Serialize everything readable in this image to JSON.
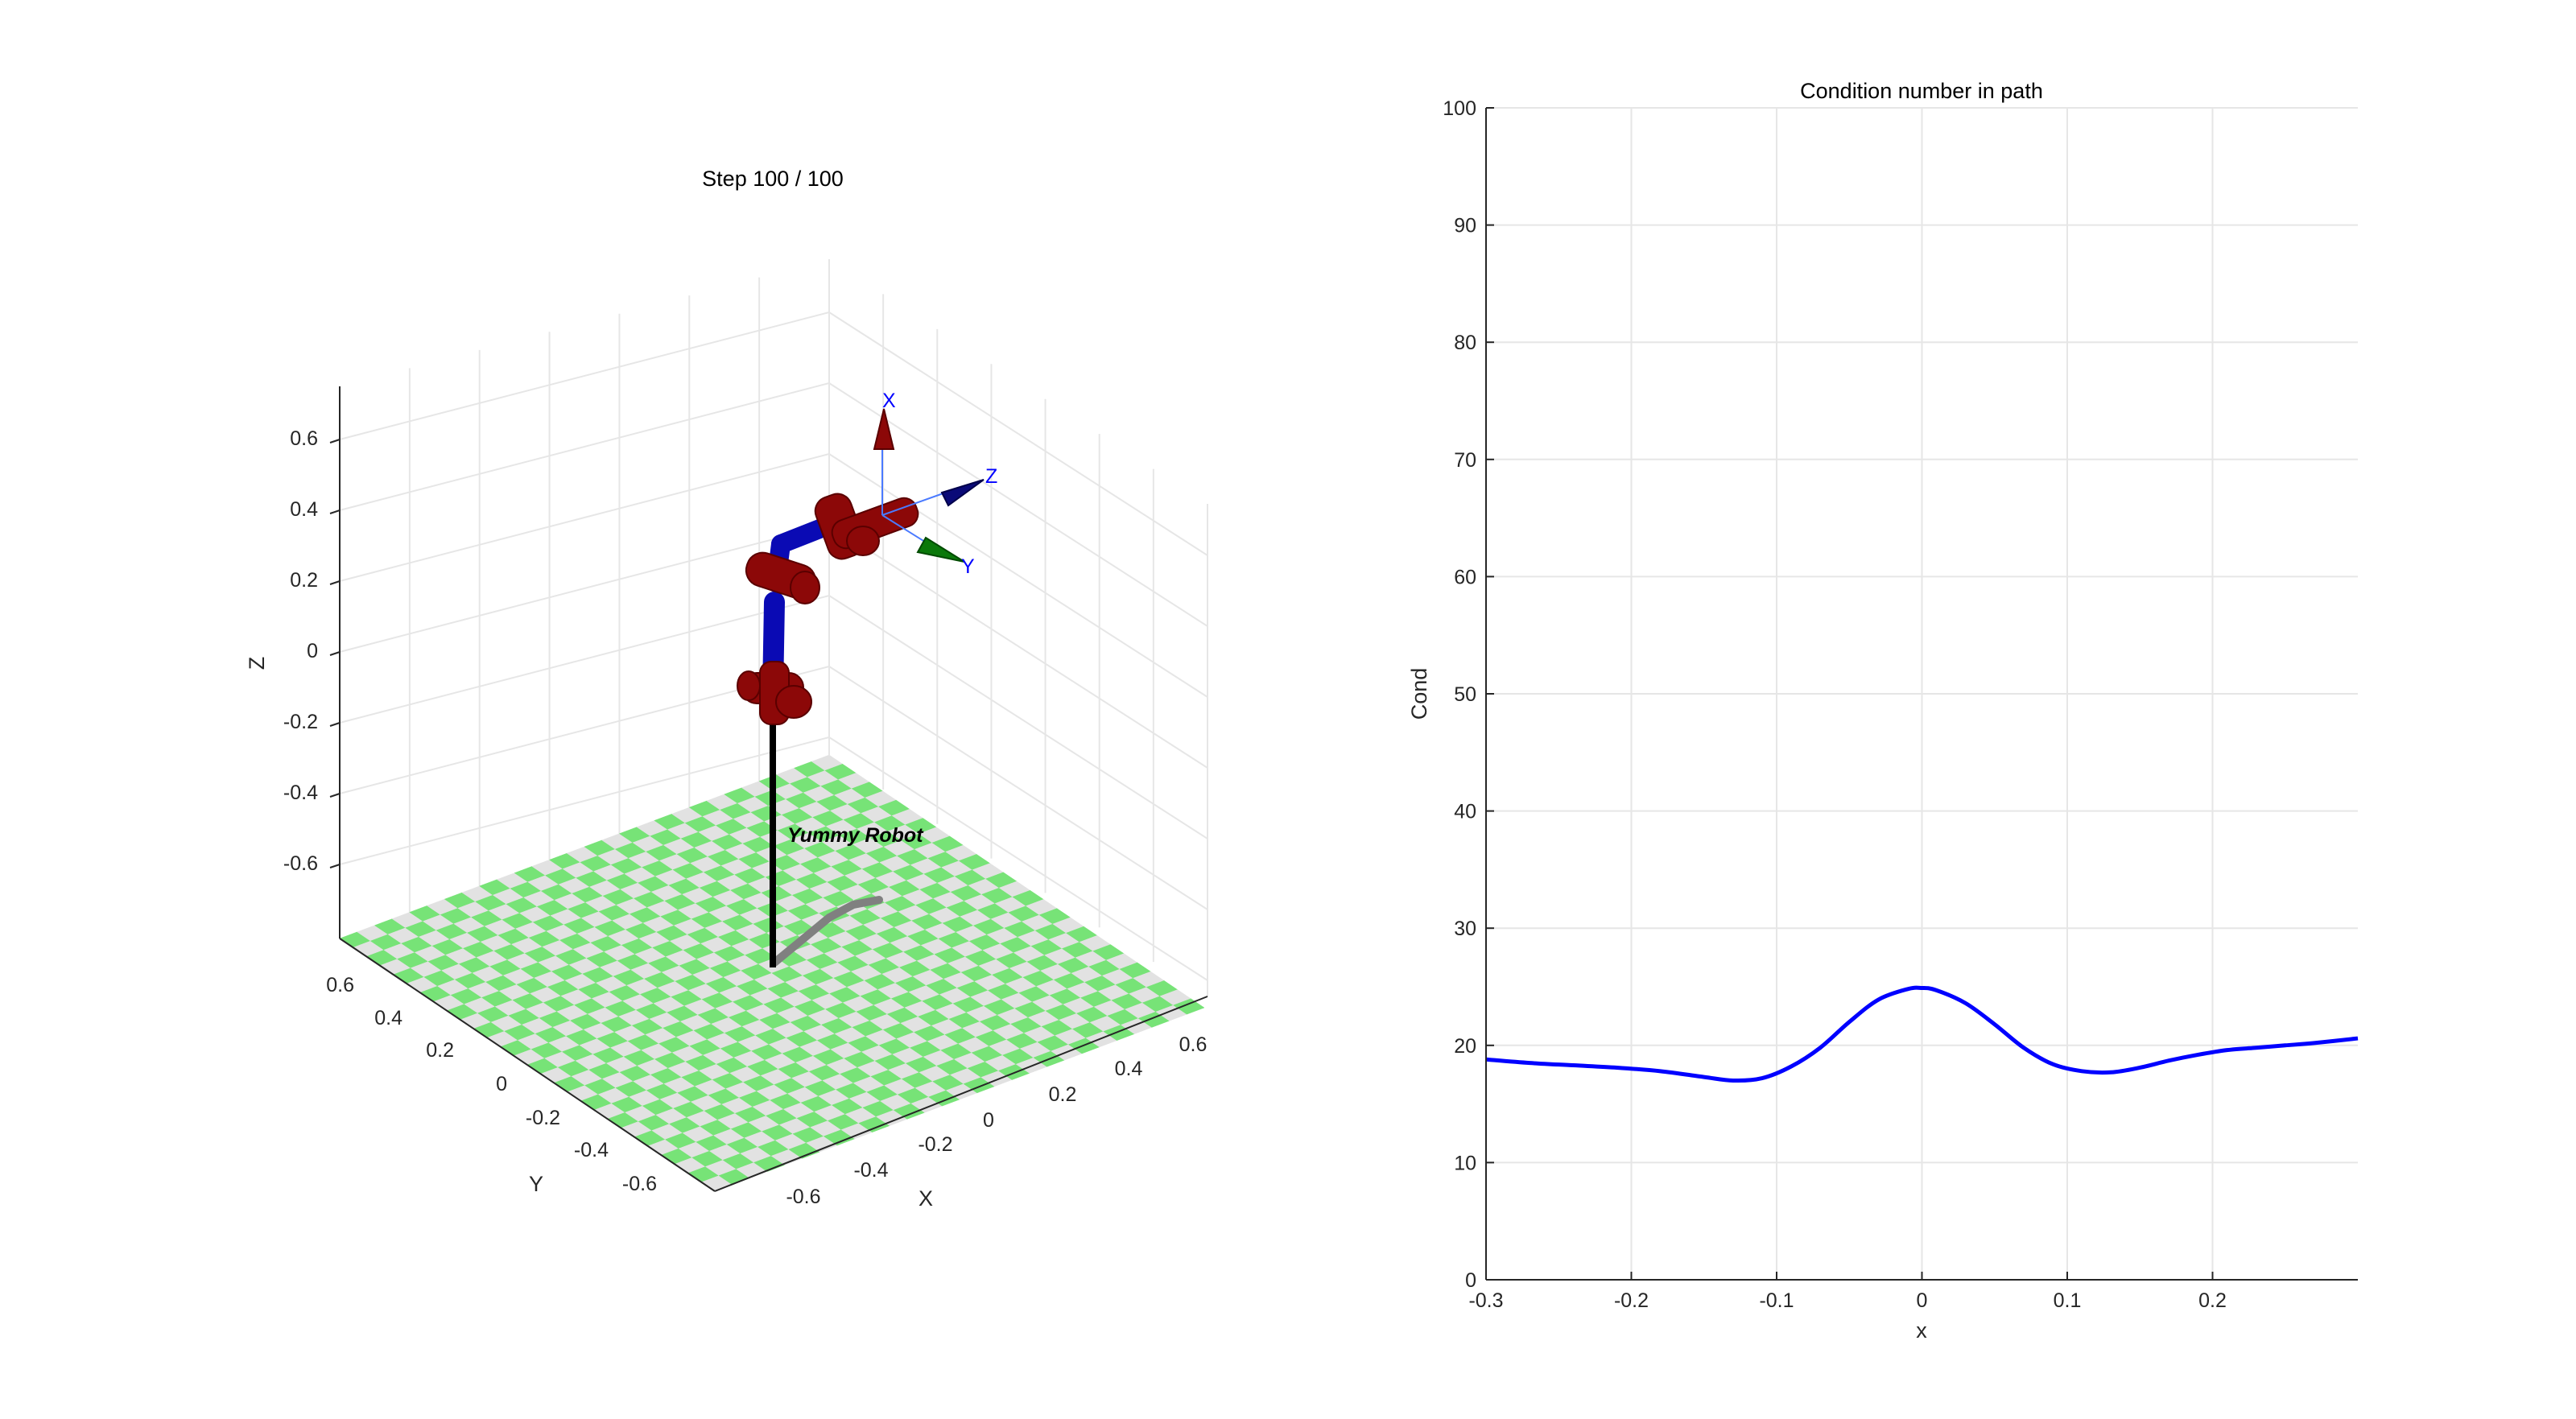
{
  "left_plot": {
    "title": "Step 100 / 100",
    "xlabel": "X",
    "ylabel": "Y",
    "zlabel": "Z",
    "z_ticks": [
      "0.6",
      "0.4",
      "0.2",
      "0",
      "-0.2",
      "-0.4",
      "-0.6"
    ],
    "y_ticks": [
      "0.6",
      "0.4",
      "0.2",
      "0",
      "-0.2",
      "-0.4",
      "-0.6"
    ],
    "x_ticks": [
      "-0.6",
      "-0.4",
      "-0.2",
      "0",
      "0.2",
      "0.4",
      "0.6"
    ],
    "robot_name": "Yummy Robot",
    "frame_labels": {
      "x": "X",
      "y": "Y",
      "z": "Z"
    },
    "colors": {
      "floor_green": "#77e377",
      "floor_gray": "#e2e2e2",
      "link_blue": "#0a0ab4",
      "joint_red": "#8c0808",
      "pedestal": "#000000",
      "trail": "#808080"
    }
  },
  "chart_data": {
    "type": "line",
    "title": "Condition number in path",
    "xlabel": "x",
    "ylabel": "Cond",
    "xlim": [
      -0.3,
      0.3
    ],
    "ylim": [
      0,
      100
    ],
    "x_ticks": [
      "-0.3",
      "-0.2",
      "-0.1",
      "0",
      "0.1",
      "0.2"
    ],
    "y_ticks": [
      "0",
      "10",
      "20",
      "30",
      "40",
      "50",
      "60",
      "70",
      "80",
      "90",
      "100"
    ],
    "grid": true,
    "line_color": "#0000ff",
    "series": [
      {
        "x": [
          -0.3,
          -0.27,
          -0.24,
          -0.21,
          -0.18,
          -0.15,
          -0.13,
          -0.11,
          -0.09,
          -0.07,
          -0.05,
          -0.03,
          -0.01,
          0.0,
          0.01,
          0.03,
          0.05,
          0.07,
          0.09,
          0.11,
          0.13,
          0.15,
          0.17,
          0.19,
          0.21,
          0.23,
          0.25,
          0.27,
          0.3
        ],
        "y": [
          18.8,
          18.5,
          18.3,
          18.1,
          17.8,
          17.3,
          17.0,
          17.2,
          18.2,
          19.8,
          22.0,
          23.9,
          24.8,
          24.9,
          24.7,
          23.6,
          21.8,
          19.8,
          18.4,
          17.8,
          17.7,
          18.1,
          18.7,
          19.2,
          19.6,
          19.8,
          20.0,
          20.2,
          20.6
        ]
      }
    ]
  }
}
